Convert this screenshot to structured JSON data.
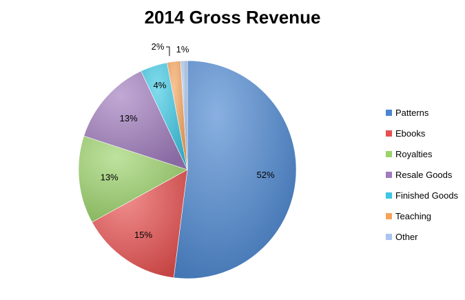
{
  "chart_data": {
    "type": "pie",
    "title": "2014 Gross Revenue",
    "categories": [
      "Patterns",
      "Ebooks",
      "Royalties",
      "Resale Goods",
      "Finished Goods",
      "Teaching",
      "Other"
    ],
    "values": [
      52,
      15,
      13,
      13,
      4,
      2,
      1
    ],
    "labels": [
      "52%",
      "15%",
      "13%",
      "13%",
      "4%",
      "2%",
      "1%"
    ],
    "colors": [
      "#4a86d0",
      "#e8504f",
      "#9bd36a",
      "#a07bbd",
      "#3cc7e3",
      "#f5a35a",
      "#a9c4ee"
    ],
    "legend_position": "right"
  }
}
